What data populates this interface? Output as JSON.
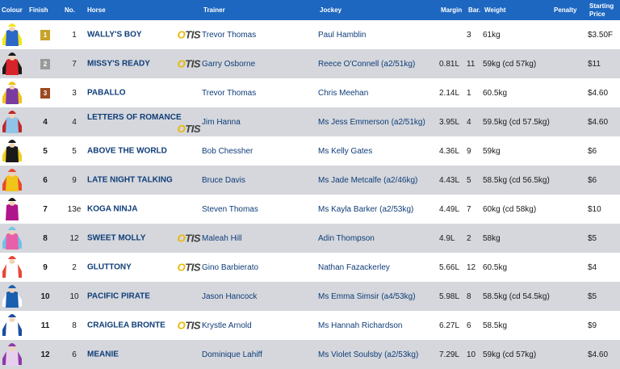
{
  "headers": {
    "colour": "Colour",
    "finish": "Finish",
    "no": "No.",
    "horse": "Horse",
    "trainer": "Trainer",
    "jockey": "Jockey",
    "margin": "Margin",
    "barrier": "Bar.",
    "weight": "Weight",
    "penalty": "Penalty",
    "price": "Starting Price"
  },
  "otis_badge": {
    "o": "O",
    "rest": "TIS"
  },
  "rows": [
    {
      "finish": "1",
      "no": "1",
      "horse": "WALLY'S BOY",
      "otis": true,
      "trainer": "Trevor Thomas",
      "jockey": "Paul Hamblin",
      "margin": "",
      "barrier": "3",
      "weight": "61kg",
      "penalty": "",
      "price": "$3.50F",
      "silk": {
        "body": "#2b68c8",
        "sleeves": "#f2e61c",
        "cap": "#f2e61c"
      },
      "badge": "#c8a22a"
    },
    {
      "finish": "2",
      "no": "7",
      "horse": "MISSY'S READY",
      "otis": true,
      "trainer": "Garry Osborne",
      "jockey": "Reece O'Connell (a2/51kg)",
      "margin": "0.81L",
      "barrier": "11",
      "weight": "59kg (cd 57kg)",
      "penalty": "",
      "price": "$11",
      "silk": {
        "body": "#d8232a",
        "sleeves": "#1a1a1a",
        "cap": "#1a1a1a"
      },
      "badge": "#9a9a9a"
    },
    {
      "finish": "3",
      "no": "3",
      "horse": "PABALLO",
      "otis": false,
      "trainer": "Trevor Thomas",
      "jockey": "Chris Meehan",
      "margin": "2.14L",
      "barrier": "1",
      "weight": "60.5kg",
      "penalty": "",
      "price": "$4.60",
      "silk": {
        "body": "#7a3ca0",
        "sleeves": "#f0c419",
        "cap": "#f0c419"
      },
      "badge": "#9c4a20"
    },
    {
      "finish": "4",
      "no": "4",
      "horse": "LETTERS OF ROMANCE",
      "otis": true,
      "trainer": "Jim Hanna",
      "jockey": "Ms Jess Emmerson (a2/51kg)",
      "margin": "3.95L",
      "barrier": "4",
      "weight": "59.5kg (cd 57.5kg)",
      "penalty": "",
      "price": "$4.60",
      "silk": {
        "body": "#8fc4e8",
        "sleeves": "#c0272d",
        "cap": "#c0272d"
      },
      "badge": ""
    },
    {
      "finish": "5",
      "no": "5",
      "horse": "ABOVE THE WORLD",
      "otis": false,
      "trainer": "Bob Chessher",
      "jockey": "Ms Kelly Gates",
      "margin": "4.36L",
      "barrier": "9",
      "weight": "59kg",
      "penalty": "",
      "price": "$6",
      "silk": {
        "body": "#1a1a1a",
        "sleeves": "#f0d020",
        "cap": "#1a1a1a"
      },
      "badge": ""
    },
    {
      "finish": "6",
      "no": "9",
      "horse": "LATE NIGHT TALKING",
      "otis": false,
      "trainer": "Bruce Davis",
      "jockey": "Ms Jade Metcalfe (a2/46kg)",
      "margin": "4.43L",
      "barrier": "5",
      "weight": "58.5kg (cd 56.5kg)",
      "penalty": "",
      "price": "$6",
      "silk": {
        "body": "#f0c419",
        "sleeves": "#e84a2a",
        "cap": "#e84a2a"
      },
      "badge": ""
    },
    {
      "finish": "7",
      "no": "13e",
      "horse": "KOGA NINJA",
      "otis": false,
      "trainer": "Steven Thomas",
      "jockey": "Ms Kayla Barker (a2/53kg)",
      "margin": "4.49L",
      "barrier": "7",
      "weight": "60kg (cd 58kg)",
      "penalty": "",
      "price": "$10",
      "silk": {
        "body": "#b0158c",
        "sleeves": "#ffffff",
        "cap": "#1a1a1a"
      },
      "badge": ""
    },
    {
      "finish": "8",
      "no": "12",
      "horse": "SWEET MOLLY",
      "otis": true,
      "trainer": "Maleah Hill",
      "jockey": "Adin Thompson",
      "margin": "4.9L",
      "barrier": "2",
      "weight": "58kg",
      "penalty": "",
      "price": "$5",
      "silk": {
        "body": "#e860a8",
        "sleeves": "#6fc3e8",
        "cap": "#6fc3e8"
      },
      "badge": ""
    },
    {
      "finish": "9",
      "no": "2",
      "horse": "GLUTTONY",
      "otis": true,
      "trainer": "Gino Barbierato",
      "jockey": "Nathan Fazackerley",
      "margin": "5.66L",
      "barrier": "12",
      "weight": "60.5kg",
      "penalty": "",
      "price": "$4",
      "silk": {
        "body": "#ffffff",
        "sleeves": "#e8483a",
        "cap": "#e8483a"
      },
      "badge": ""
    },
    {
      "finish": "10",
      "no": "10",
      "horse": "PACIFIC PIRATE",
      "otis": false,
      "trainer": "Jason Hancock",
      "jockey": "Ms Emma Simsir (a4/53kg)",
      "margin": "5.98L",
      "barrier": "8",
      "weight": "58.5kg (cd 54.5kg)",
      "penalty": "",
      "price": "$5",
      "silk": {
        "body": "#1a5fb0",
        "sleeves": "#ffffff",
        "cap": "#1a5fb0"
      },
      "badge": ""
    },
    {
      "finish": "11",
      "no": "8",
      "horse": "CRAIGLEA BRONTE",
      "otis": true,
      "trainer": "Krystle Arnold",
      "jockey": "Ms Hannah Richardson",
      "margin": "6.27L",
      "barrier": "6",
      "weight": "58.5kg",
      "penalty": "",
      "price": "$9",
      "silk": {
        "body": "#ffffff",
        "sleeves": "#1a4fa0",
        "cap": "#1a4fa0"
      },
      "badge": ""
    },
    {
      "finish": "12",
      "no": "6",
      "horse": "MEANIE",
      "otis": false,
      "trainer": "Dominique Lahiff",
      "jockey": "Ms Violet Soulsby (a2/53kg)",
      "margin": "7.29L",
      "barrier": "10",
      "weight": "59kg (cd 57kg)",
      "penalty": "",
      "price": "$4.60",
      "silk": {
        "body": "#e6d0ee",
        "sleeves": "#8e3aa8",
        "cap": "#8e3aa8"
      },
      "badge": ""
    }
  ]
}
